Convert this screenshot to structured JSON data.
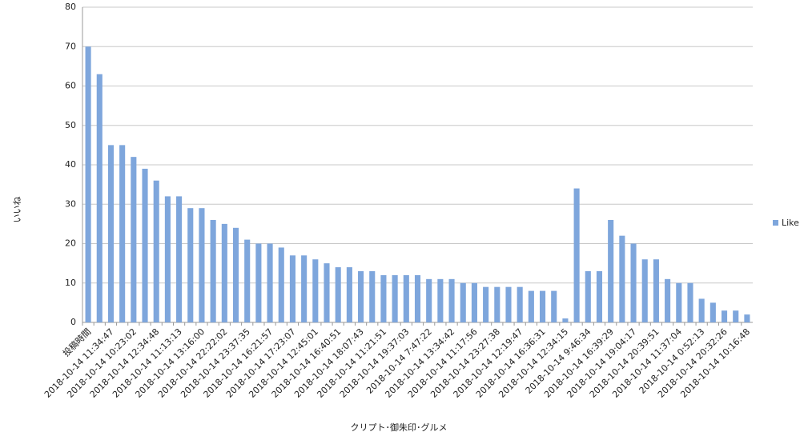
{
  "chart_data": {
    "type": "bar",
    "y_label": "いいね",
    "x_label": "クリプト･御朱印･グルメ",
    "categories": [
      "投稿時間",
      null,
      "2018-10-14 11:34:47",
      null,
      "2018-10-14 10:23:02",
      null,
      "2018-10-14 12:34:48",
      null,
      "2018-10-14 11:13:13",
      null,
      "2018-10-14 13:16:00",
      null,
      "2018-10-14 22:22:02",
      null,
      "2018-10-14 23:37:35",
      null,
      "2018-10-14 16:21:57",
      null,
      "2018-10-14 17:23:07",
      null,
      "2018-10-14 12:45:01",
      null,
      "2018-10-14 16:40:51",
      null,
      "2018-10-14 18:07:43",
      null,
      "2018-10-14 11:21:51",
      null,
      "2018-10-14 19:37:03",
      null,
      "2018-10-14 7:47:22",
      null,
      "2018-10-14 13:34:42",
      null,
      "2018-10-14 11:17:56",
      null,
      "2018-10-14 23:27:38",
      null,
      "2018-10-14 12:19:47",
      null,
      "2018-10-14 16:36:31",
      null,
      "2018-10-14 12:34:15",
      null,
      "2018-10-14 9:46:34",
      null,
      "2018-10-14 16:39:29",
      null,
      "2018-10-14 19:04:17",
      null,
      "2018-10-14 20:39:51",
      null,
      "2018-10-14 11:37:04",
      null,
      "2018-10-14 0:52:13",
      null,
      "2018-10-14 20:32:26",
      null,
      "2018-10-14 10:16:48"
    ],
    "series": [
      {
        "name": "Like",
        "color": "#7ea6dc",
        "values": [
          70,
          63,
          45,
          45,
          42,
          39,
          36,
          32,
          32,
          29,
          29,
          26,
          25,
          24,
          21,
          20,
          20,
          19,
          17,
          17,
          16,
          15,
          14,
          14,
          13,
          13,
          12,
          12,
          12,
          12,
          11,
          11,
          11,
          10,
          10,
          9,
          9,
          9,
          9,
          8,
          8,
          8,
          1,
          34,
          13,
          13,
          26,
          22,
          20,
          16,
          16,
          11,
          10,
          10,
          6,
          5,
          3,
          3,
          2
        ]
      }
    ],
    "ylim": [
      0,
      80
    ],
    "yticks": [
      0,
      10,
      20,
      30,
      40,
      50,
      60,
      70,
      80
    ],
    "grid": true,
    "legend": "right"
  }
}
